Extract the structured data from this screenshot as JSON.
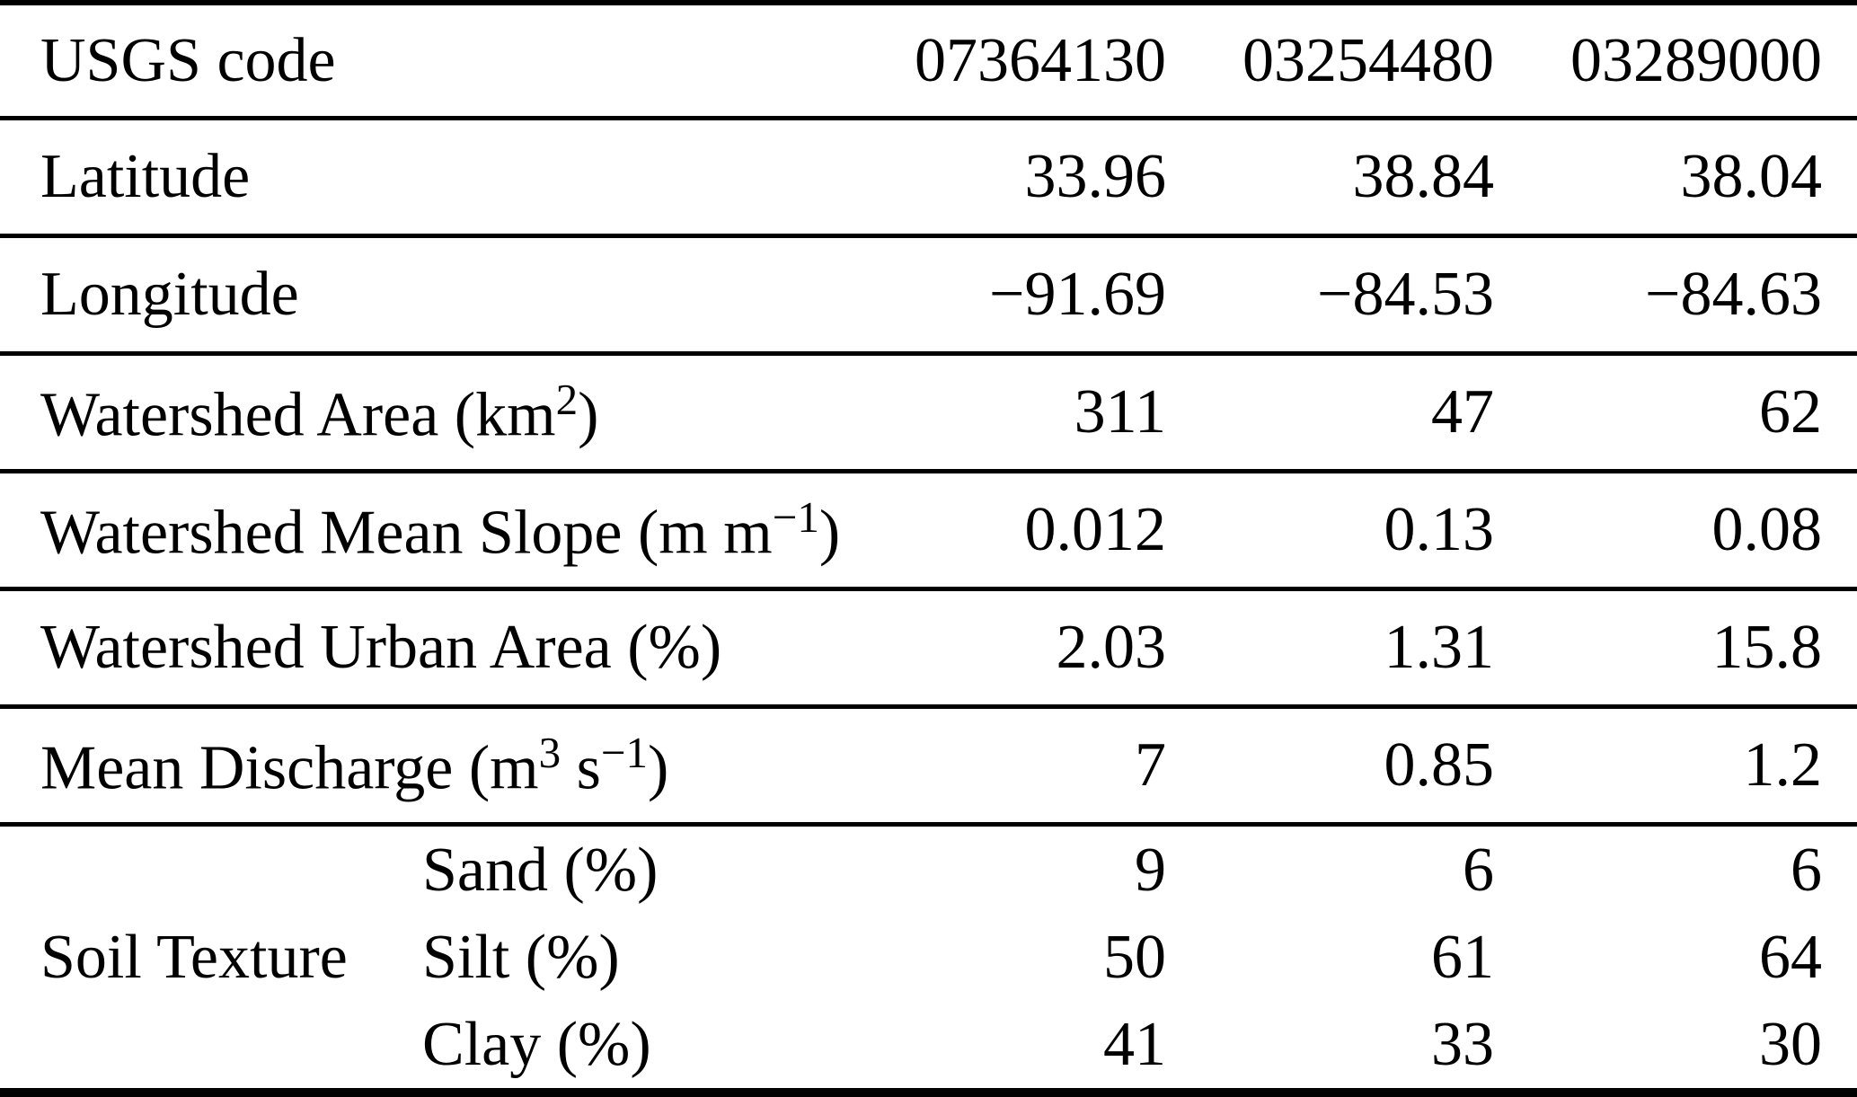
{
  "table": {
    "header_label": "USGS code",
    "columns": [
      "07364130",
      "03254480",
      "03289000"
    ],
    "rows": [
      {
        "label": [
          {
            "text": "Latitude",
            "sup": false
          }
        ],
        "values": [
          "33.96",
          "38.84",
          "38.04"
        ]
      },
      {
        "label": [
          {
            "text": "Longitude",
            "sup": false
          }
        ],
        "values": [
          "−91.69",
          "−84.53",
          "−84.63"
        ]
      },
      {
        "label": [
          {
            "text": "Watershed Area (km",
            "sup": false
          },
          {
            "text": "2",
            "sup": true
          },
          {
            "text": ")",
            "sup": false
          }
        ],
        "values": [
          "311",
          "47",
          "62"
        ]
      },
      {
        "label": [
          {
            "text": "Watershed Mean Slope (m m",
            "sup": false
          },
          {
            "text": "−1",
            "sup": true
          },
          {
            "text": ")",
            "sup": false
          }
        ],
        "values": [
          "0.012",
          "0.13",
          "0.08"
        ]
      },
      {
        "label": [
          {
            "text": "Watershed Urban Area (%)",
            "sup": false
          }
        ],
        "values": [
          "2.03",
          "1.31",
          "15.8"
        ]
      },
      {
        "label": [
          {
            "text": "Mean Discharge (m",
            "sup": false
          },
          {
            "text": "3",
            "sup": true
          },
          {
            "text": " s",
            "sup": false
          },
          {
            "text": "−1",
            "sup": true
          },
          {
            "text": ")",
            "sup": false
          }
        ],
        "values": [
          "7",
          "0.85",
          "1.2"
        ]
      }
    ],
    "group_row": {
      "label": "Soil Texture",
      "subrows": [
        {
          "label": "Sand (%)",
          "values": [
            "9",
            "6",
            "6"
          ]
        },
        {
          "label": "Silt (%)",
          "values": [
            "50",
            "61",
            "64"
          ]
        },
        {
          "label": "Clay (%)",
          "values": [
            "41",
            "33",
            "30"
          ]
        }
      ]
    }
  }
}
